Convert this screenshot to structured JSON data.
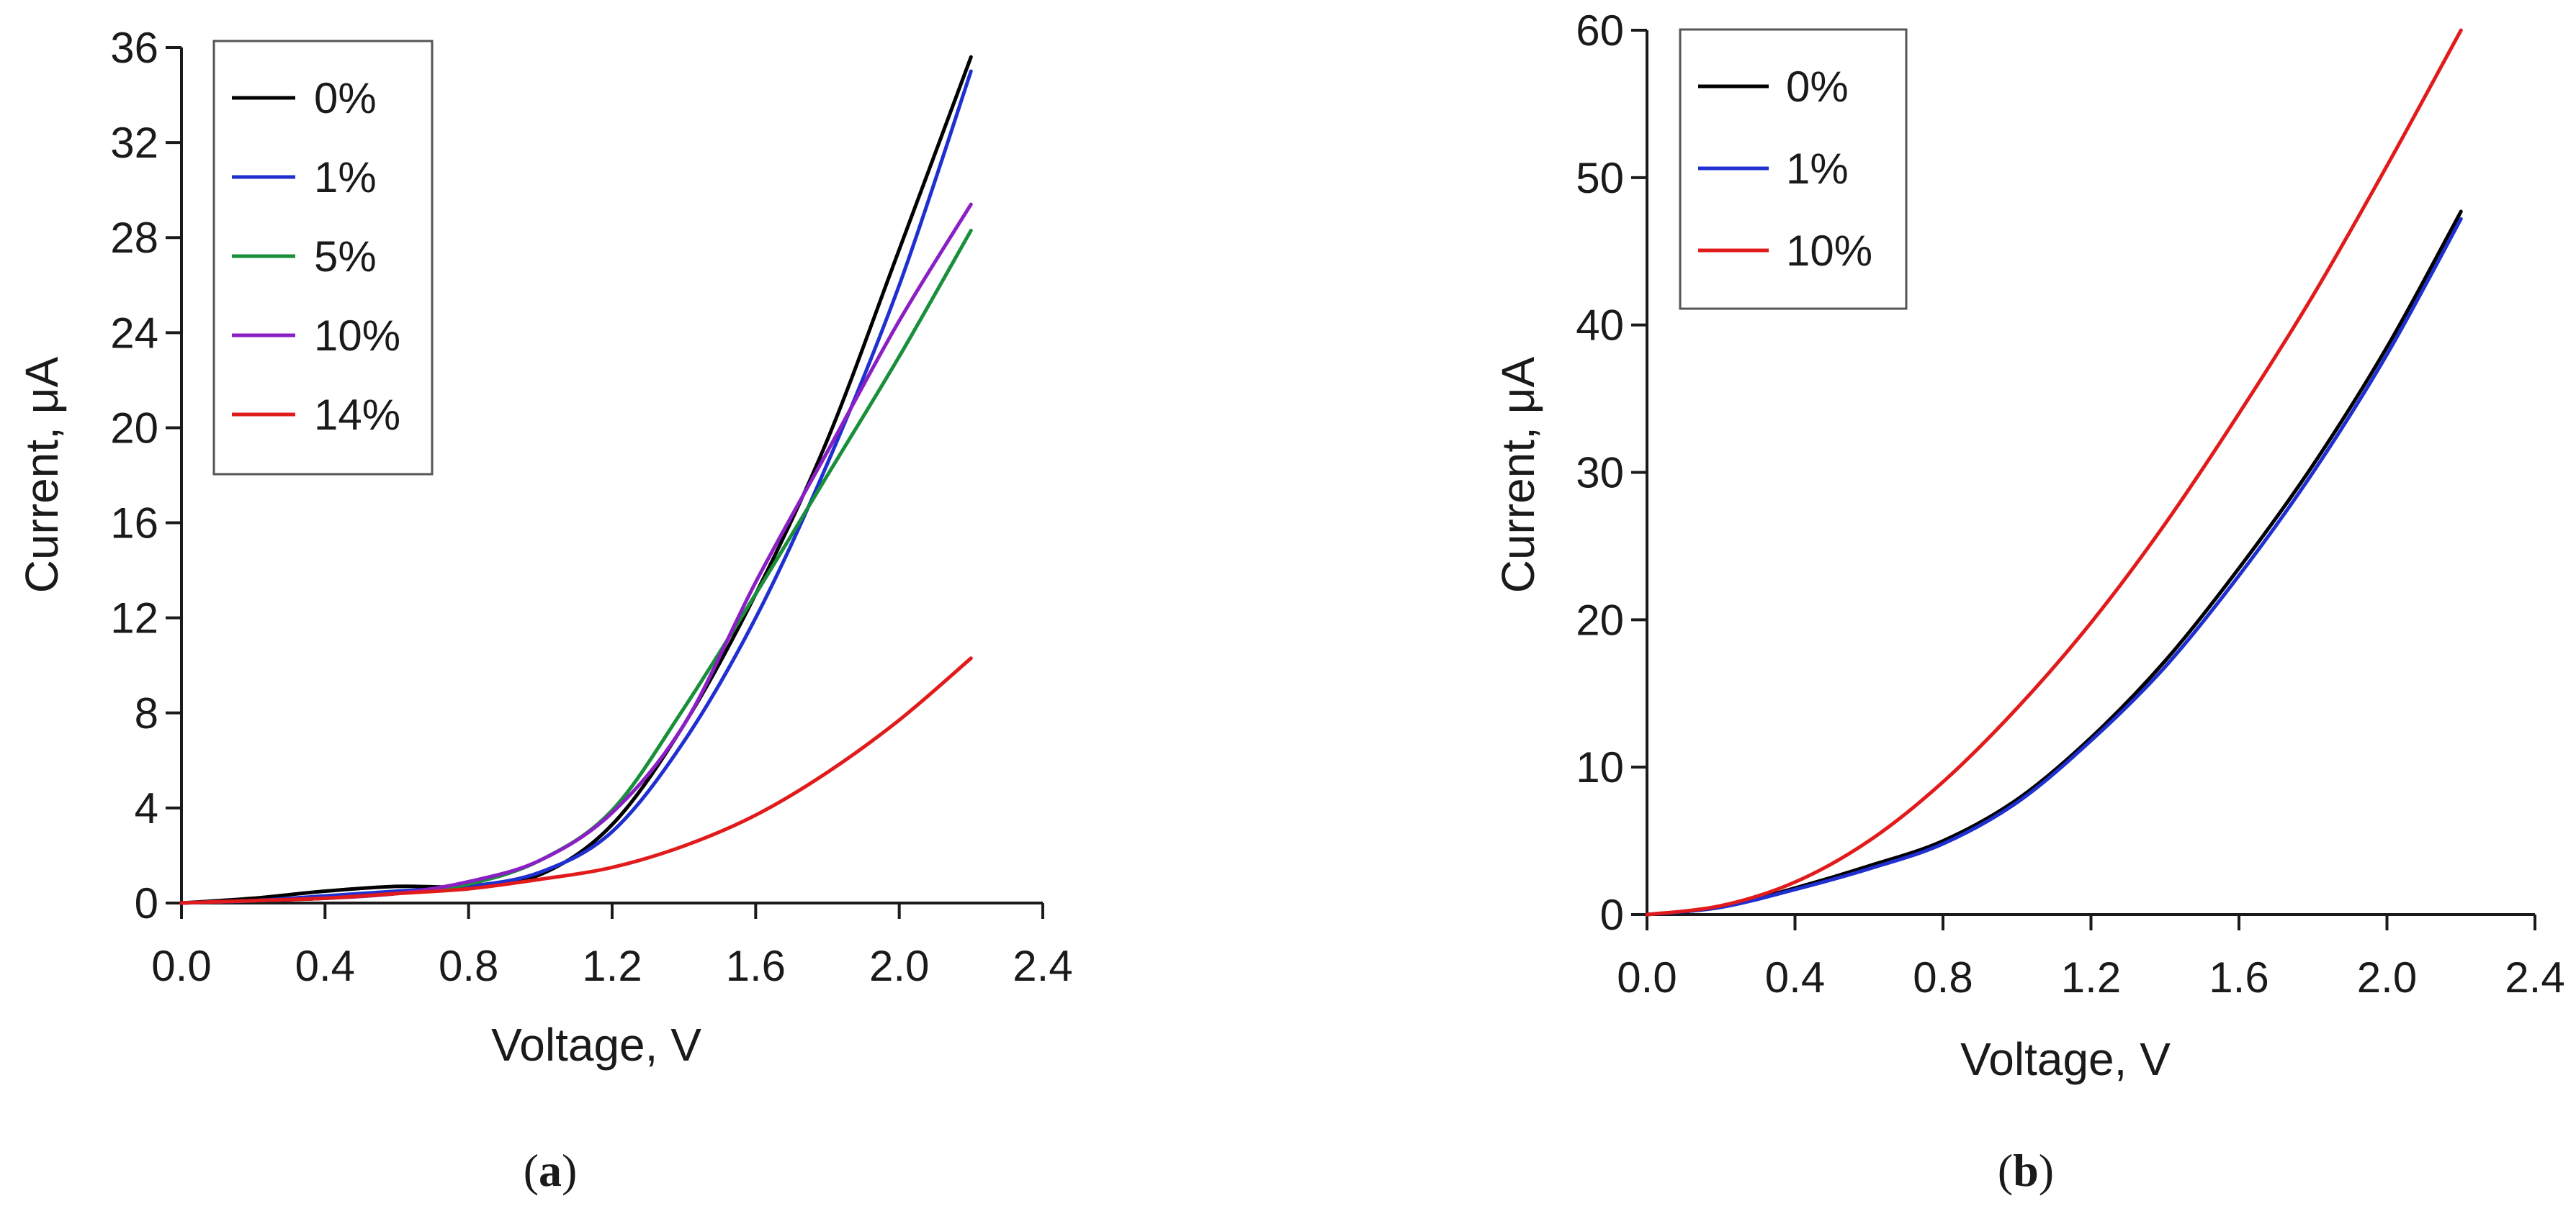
{
  "chart_data": [
    {
      "type": "line",
      "panel_label": "a",
      "xlabel": "Voltage, V",
      "ylabel": "Current, μA",
      "xlim": [
        0,
        2.4
      ],
      "ylim": [
        0,
        36
      ],
      "xticks": [
        0,
        0.4,
        0.8,
        1.2,
        1.6,
        2.0,
        2.4
      ],
      "xtick_labels": [
        "0.0",
        "0.4",
        "0.8",
        "1.2",
        "1.6",
        "2.0",
        "2.4"
      ],
      "yticks": [
        0,
        4,
        8,
        12,
        16,
        20,
        24,
        28,
        32,
        36
      ],
      "ytick_labels": [
        "0",
        "4",
        "8",
        "12",
        "16",
        "20",
        "24",
        "28",
        "32",
        "36"
      ],
      "grid": false,
      "legend_position": "top-left",
      "series": [
        {
          "name": "0%",
          "color": "#000000",
          "x": [
            0,
            0.2,
            0.4,
            0.6,
            0.8,
            1.0,
            1.2,
            1.4,
            1.6,
            1.8,
            2.0,
            2.2
          ],
          "y": [
            0,
            0.2,
            0.5,
            0.7,
            0.7,
            1.2,
            3.3,
            7.5,
            13.0,
            19.5,
            27.5,
            35.6
          ]
        },
        {
          "name": "1%",
          "color": "#1f2fd0",
          "x": [
            0,
            0.2,
            0.4,
            0.6,
            0.8,
            1.0,
            1.2,
            1.4,
            1.6,
            1.8,
            2.0,
            2.2
          ],
          "y": [
            0,
            0.1,
            0.3,
            0.5,
            0.7,
            1.3,
            3.0,
            6.8,
            12.0,
            18.5,
            26.0,
            35.0
          ]
        },
        {
          "name": "5%",
          "color": "#1a8f3a",
          "x": [
            0,
            0.2,
            0.4,
            0.6,
            0.8,
            1.0,
            1.2,
            1.4,
            1.6,
            1.8,
            2.0,
            2.2
          ],
          "y": [
            0,
            0.1,
            0.2,
            0.4,
            0.8,
            1.8,
            3.9,
            8.2,
            13.0,
            18.0,
            23.0,
            28.3
          ]
        },
        {
          "name": "10%",
          "color": "#8a1fc4",
          "x": [
            0,
            0.2,
            0.4,
            0.6,
            0.8,
            1.0,
            1.2,
            1.4,
            1.6,
            1.8,
            2.0,
            2.2
          ],
          "y": [
            0,
            0.1,
            0.2,
            0.4,
            0.9,
            1.8,
            3.8,
            7.5,
            13.5,
            19.0,
            24.5,
            29.4
          ]
        },
        {
          "name": "14%",
          "color": "#e11b1b",
          "x": [
            0,
            0.2,
            0.4,
            0.6,
            0.8,
            1.0,
            1.2,
            1.4,
            1.6,
            1.8,
            2.0,
            2.2
          ],
          "y": [
            0,
            0.1,
            0.2,
            0.4,
            0.6,
            1.0,
            1.5,
            2.4,
            3.7,
            5.5,
            7.7,
            10.3
          ]
        }
      ]
    },
    {
      "type": "line",
      "panel_label": "b",
      "xlabel": "Voltage, V",
      "ylabel": "Current, μA",
      "xlim": [
        0,
        2.4
      ],
      "ylim": [
        0,
        60
      ],
      "xticks": [
        0,
        0.4,
        0.8,
        1.2,
        1.6,
        2.0,
        2.4
      ],
      "xtick_labels": [
        "0.0",
        "0.4",
        "0.8",
        "1.2",
        "1.6",
        "2.0",
        "2.4"
      ],
      "yticks": [
        0,
        10,
        20,
        30,
        40,
        50,
        60
      ],
      "ytick_labels": [
        "0",
        "10",
        "20",
        "30",
        "40",
        "50",
        "60"
      ],
      "grid": false,
      "legend_position": "top-left",
      "series": [
        {
          "name": "0%",
          "color": "#000000",
          "x": [
            0,
            0.2,
            0.4,
            0.6,
            0.8,
            1.0,
            1.2,
            1.4,
            1.6,
            1.8,
            2.0,
            2.2
          ],
          "y": [
            0,
            0.5,
            1.8,
            3.3,
            5.0,
            7.8,
            12.0,
            17.2,
            23.5,
            30.5,
            38.5,
            47.7
          ]
        },
        {
          "name": "1%",
          "color": "#1f2fd0",
          "x": [
            0,
            0.2,
            0.4,
            0.6,
            0.8,
            1.0,
            1.2,
            1.4,
            1.6,
            1.8,
            2.0,
            2.2
          ],
          "y": [
            0,
            0.5,
            1.7,
            3.1,
            4.8,
            7.6,
            11.8,
            16.8,
            23.0,
            30.0,
            38.0,
            47.2
          ]
        },
        {
          "name": "10%",
          "color": "#e11b1b",
          "x": [
            0,
            0.2,
            0.4,
            0.6,
            0.8,
            1.0,
            1.2,
            1.4,
            1.6,
            1.8,
            2.0,
            2.2
          ],
          "y": [
            0,
            0.6,
            2.2,
            5.0,
            9.0,
            14.0,
            19.8,
            26.5,
            34.0,
            42.0,
            50.8,
            60.0
          ]
        }
      ]
    }
  ]
}
